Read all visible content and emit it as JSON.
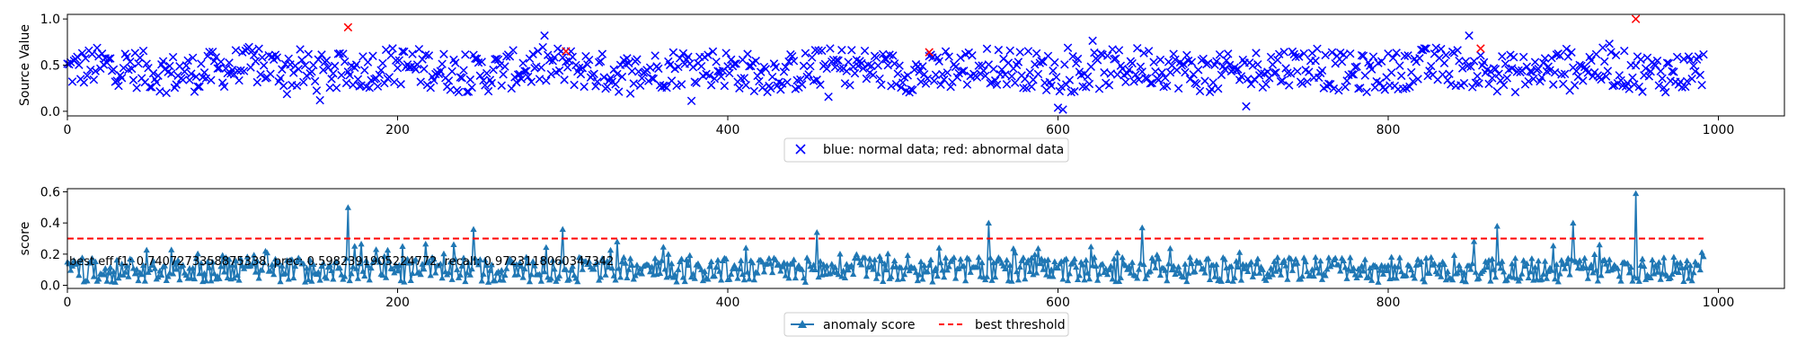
{
  "chart_data": [
    {
      "type": "scatter",
      "title": "",
      "xlabel": "",
      "ylabel": "Source Value",
      "xlim": [
        0,
        1040
      ],
      "ylim": [
        -0.05,
        1.05
      ],
      "xticks": [
        "0",
        "200",
        "400",
        "600",
        "800",
        "1000"
      ],
      "yticks": [
        "0.0",
        "0.5",
        "1.0"
      ],
      "legend": {
        "position": "below-center",
        "label": "blue: normal data; red: abnormal data"
      },
      "series": [
        {
          "name": "normal",
          "marker": "x",
          "color": "#0000ff",
          "count": 992,
          "value_range": [
            0.0,
            0.82
          ]
        },
        {
          "name": "abnormal",
          "marker": "x",
          "color": "#ff0000",
          "x": [
            170,
            302,
            522,
            856,
            950
          ],
          "y": [
            0.91,
            0.65,
            0.64,
            0.68,
            1.0
          ]
        }
      ]
    },
    {
      "type": "line",
      "title": "",
      "xlabel": "",
      "ylabel": "score",
      "xlim": [
        0,
        1040
      ],
      "ylim": [
        -0.02,
        0.62
      ],
      "xticks": [
        "0",
        "200",
        "400",
        "600",
        "800",
        "1000"
      ],
      "yticks": [
        "0.0",
        "0.2",
        "0.4",
        "0.6"
      ],
      "annotation": "best eff f1: 0.7407273358875338, prec: 0.5982391905224772, recall: 0.9723118060347342",
      "legend": {
        "position": "below-center",
        "labels": [
          "anomaly score",
          "best threshold"
        ]
      },
      "series": [
        {
          "name": "anomaly score",
          "marker": "triangle",
          "color": "#1f77b4",
          "count": 992,
          "peaks": {
            "x": [
              170,
              246,
              300,
              333,
              454,
              558,
              651,
              866,
              912,
              950
            ],
            "y": [
              0.5,
              0.36,
              0.36,
              0.28,
              0.34,
              0.4,
              0.37,
              0.38,
              0.4,
              0.59
            ]
          }
        },
        {
          "name": "best threshold",
          "style": "dashed",
          "color": "#ff0000",
          "y": 0.3
        }
      ]
    }
  ]
}
